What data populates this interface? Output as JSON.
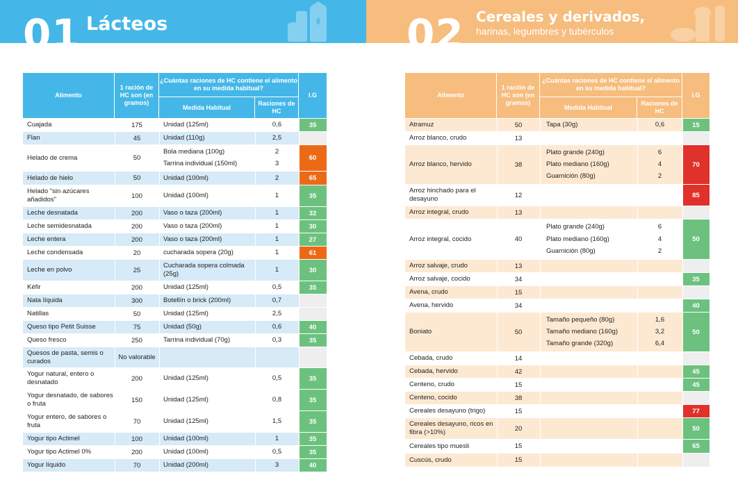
{
  "colors": {
    "green": "#6cc17f",
    "orange": "#ec6a16",
    "red": "#e0312b",
    "blue": "#44b7e8",
    "peach": "#f6bd7e",
    "row_blue": "#d6eaf7",
    "row_peach": "#fde9d2",
    "empty_ig": "#eeeeee"
  },
  "section1": {
    "number": "01",
    "title": "Lácteos",
    "icon": "dairy-products-icon",
    "headers": {
      "food": "Alimento",
      "grams": "1 ración de HC son (en gramos)",
      "question": "¿Cuántas raciones de HC contiene el alimento en su medida habitual?",
      "measure": "Medida Habitual",
      "portions": "Raciones de HC",
      "ig": "I.G"
    },
    "rows": [
      {
        "name": "Cuajada",
        "grams": "175",
        "measures": [
          "Unidad (125ml)"
        ],
        "portions": [
          "0,6"
        ],
        "ig": "35",
        "color": "green",
        "h": 19,
        "tint": false
      },
      {
        "name": "Flan",
        "grams": "45",
        "measures": [
          "Unidad (110g)"
        ],
        "portions": [
          "2,5"
        ],
        "ig": "",
        "color": "empty",
        "h": 19,
        "tint": true
      },
      {
        "name": "Helado de crema",
        "grams": "50",
        "measures": [
          "Bola mediana (100g)",
          "Tarrina individual (150ml)"
        ],
        "portions": [
          "2",
          "3"
        ],
        "ig": "60",
        "color": "orange",
        "h": 38,
        "tint": false
      },
      {
        "name": "Helado de hielo",
        "grams": "50",
        "measures": [
          "Unidad (100ml)"
        ],
        "portions": [
          "2"
        ],
        "ig": "65",
        "color": "orange",
        "h": 20,
        "tint": true
      },
      {
        "name": "Helado \"sin azúcares añadidos\"",
        "grams": "100",
        "measures": [
          "Unidad (100ml)"
        ],
        "portions": [
          "1"
        ],
        "ig": "35",
        "color": "green",
        "h": 31,
        "tint": false
      },
      {
        "name": "Leche desnatada",
        "grams": "200",
        "measures": [
          "Vaso o taza (200ml)"
        ],
        "portions": [
          "1"
        ],
        "ig": "32",
        "color": "green",
        "h": 19,
        "tint": true
      },
      {
        "name": "Leche semidesnatada",
        "grams": "200",
        "measures": [
          "Vaso o taza (200ml)"
        ],
        "portions": [
          "1"
        ],
        "ig": "30",
        "color": "green",
        "h": 19,
        "tint": false
      },
      {
        "name": "Leche entera",
        "grams": "200",
        "measures": [
          "Vaso o taza (200ml)"
        ],
        "portions": [
          "1"
        ],
        "ig": "27",
        "color": "green",
        "h": 19,
        "tint": true
      },
      {
        "name": "Leche condensada",
        "grams": "20",
        "measures": [
          "cucharada sopera (20g)"
        ],
        "portions": [
          "1"
        ],
        "ig": "61",
        "color": "orange",
        "h": 19,
        "tint": false
      },
      {
        "name": "Leche en polvo",
        "grams": "25",
        "measures": [
          "Cucharada sopera colmada (25g)"
        ],
        "portions": [
          "1"
        ],
        "ig": "30",
        "color": "green",
        "h": 31,
        "tint": true
      },
      {
        "name": "Kéfir",
        "grams": "200",
        "measures": [
          "Unidad (125ml)"
        ],
        "portions": [
          "0,5"
        ],
        "ig": "35",
        "color": "green",
        "h": 19,
        "tint": false
      },
      {
        "name": "Nata líquida",
        "grams": "300",
        "measures": [
          "Botellín o brick (200ml)"
        ],
        "portions": [
          "0,7"
        ],
        "ig": "",
        "color": "empty",
        "h": 19,
        "tint": true
      },
      {
        "name": "Natillas",
        "grams": "50",
        "measures": [
          "Unidad (125ml)"
        ],
        "portions": [
          "2,5"
        ],
        "ig": "",
        "color": "empty",
        "h": 19,
        "tint": false
      },
      {
        "name": "Queso tipo Petit Suisse",
        "grams": "75",
        "measures": [
          "Unidad (50g)"
        ],
        "portions": [
          "0,6"
        ],
        "ig": "40",
        "color": "green",
        "h": 19,
        "tint": true
      },
      {
        "name": "Queso fresco",
        "grams": "250",
        "measures": [
          "Tarrina individual (70g)"
        ],
        "portions": [
          "0,3"
        ],
        "ig": "35",
        "color": "green",
        "h": 19,
        "tint": false
      },
      {
        "name": "Quesos de pasta, semis o curados",
        "grams": "No valorable",
        "measures": [
          ""
        ],
        "portions": [
          ""
        ],
        "ig": "",
        "color": "empty",
        "h": 30,
        "tint": true
      },
      {
        "name": "Yogur natural, entero o desnatado",
        "grams": "200",
        "measures": [
          "Unidad (125ml)"
        ],
        "portions": [
          "0,5"
        ],
        "ig": "35",
        "color": "green",
        "h": 31,
        "tint": false
      },
      {
        "name": "Yogur desnatado, de sabores o fruta",
        "grams": "150",
        "measures": [
          "Unidad (125ml)"
        ],
        "portions": [
          "0,8"
        ],
        "ig": "35",
        "color": "green",
        "h": 31,
        "tint": false
      },
      {
        "name": "Yogur entero, de sabores o fruta",
        "grams": "70",
        "measures": [
          "Unidad (125ml)"
        ],
        "portions": [
          "1,5"
        ],
        "ig": "35",
        "color": "green",
        "h": 31,
        "tint": false
      },
      {
        "name": "Yogur tipo Actimel",
        "grams": "100",
        "measures": [
          "Unidad (100ml)"
        ],
        "portions": [
          "1"
        ],
        "ig": "35",
        "color": "green",
        "h": 19,
        "tint": true
      },
      {
        "name": "Yogur tipo Actimel 0%",
        "grams": "200",
        "measures": [
          "Unidad (100ml)"
        ],
        "portions": [
          "0,5"
        ],
        "ig": "35",
        "color": "green",
        "h": 19,
        "tint": false
      },
      {
        "name": "Yogur líquido",
        "grams": "70",
        "measures": [
          "Unidad (200ml)"
        ],
        "portions": [
          "3"
        ],
        "ig": "40",
        "color": "green",
        "h": 19,
        "tint": true
      }
    ]
  },
  "section2": {
    "number": "02",
    "title": "Cereales y derivados,",
    "subtitle": "harinas, legumbres y tubérculos",
    "icon": "bread-grain-icon",
    "headers": {
      "food": "Alimento",
      "grams": "1 ración de HC son (en gramos)",
      "question": "¿Cuántas raciones de HC contiene el alimento en su medida habitual?",
      "measure": "Medida Habitual",
      "portions": "Raciones de HC",
      "ig": "I.G"
    },
    "rows": [
      {
        "name": "Atramuz",
        "grams": "50",
        "measures": [
          "Tapa (30g)"
        ],
        "portions": [
          "0,6"
        ],
        "ig": "15",
        "color": "green",
        "h": 19,
        "tint": true
      },
      {
        "name": "Arroz blanco, crudo",
        "grams": "13",
        "measures": [
          ""
        ],
        "portions": [
          ""
        ],
        "ig": "",
        "color": "empty",
        "h": 19,
        "tint": false
      },
      {
        "name": "Arroz blanco, hervido",
        "grams": "38",
        "measures": [
          "Plato grande (240g)",
          "Plato mediano (160g)",
          "Guarnición (80g)"
        ],
        "portions": [
          "6",
          "4",
          "2"
        ],
        "ig": "70",
        "color": "red",
        "h": 57,
        "tint": true
      },
      {
        "name": "Arroz hinchado para el desayuno",
        "grams": "12",
        "measures": [
          ""
        ],
        "portions": [
          ""
        ],
        "ig": "85",
        "color": "red",
        "h": 31,
        "tint": false
      },
      {
        "name": "Arroz integral, crudo",
        "grams": "13",
        "measures": [
          ""
        ],
        "portions": [
          ""
        ],
        "ig": "",
        "color": "empty",
        "h": 19,
        "tint": true
      },
      {
        "name": "Arroz integral, cocido",
        "grams": "40",
        "measures": [
          "Plato grande (240g)",
          "Plato mediano (160g)",
          "Guarnición (80g)"
        ],
        "portions": [
          "6",
          "4",
          "2"
        ],
        "ig": "50",
        "color": "green",
        "h": 58,
        "tint": false
      },
      {
        "name": "Arroz salvaje, crudo",
        "grams": "13",
        "measures": [
          ""
        ],
        "portions": [
          ""
        ],
        "ig": "",
        "color": "empty",
        "h": 19,
        "tint": true
      },
      {
        "name": "Arroz salvaje, cocido",
        "grams": "34",
        "measures": [
          ""
        ],
        "portions": [
          ""
        ],
        "ig": "35",
        "color": "green",
        "h": 19,
        "tint": false
      },
      {
        "name": "Avena, crudo",
        "grams": "15",
        "measures": [
          ""
        ],
        "portions": [
          ""
        ],
        "ig": "",
        "color": "empty",
        "h": 19,
        "tint": true
      },
      {
        "name": "Avena, hervido",
        "grams": "34",
        "measures": [
          ""
        ],
        "portions": [
          ""
        ],
        "ig": "40",
        "color": "green",
        "h": 19,
        "tint": false
      },
      {
        "name": "Boniato",
        "grams": "50",
        "measures": [
          "Tamaño pequeño (80g)",
          "Tamaño mediano (160g)",
          "Tamaño grande (320g)"
        ],
        "portions": [
          "1,6",
          "3,2",
          "6,4"
        ],
        "ig": "50",
        "color": "green",
        "h": 57,
        "tint": true
      },
      {
        "name": "Cebada, crudo",
        "grams": "14",
        "measures": [
          ""
        ],
        "portions": [
          ""
        ],
        "ig": "",
        "color": "empty",
        "h": 19,
        "tint": false
      },
      {
        "name": "Cebada, hervido",
        "grams": "42",
        "measures": [
          ""
        ],
        "portions": [
          ""
        ],
        "ig": "45",
        "color": "green",
        "h": 19,
        "tint": true
      },
      {
        "name": "Centeno, crudo",
        "grams": "15",
        "measures": [
          ""
        ],
        "portions": [
          ""
        ],
        "ig": "45",
        "color": "green",
        "h": 19,
        "tint": false
      },
      {
        "name": "Centeno, cocido",
        "grams": "38",
        "measures": [
          ""
        ],
        "portions": [
          ""
        ],
        "ig": "",
        "color": "empty",
        "h": 19,
        "tint": true
      },
      {
        "name": "Cereales desayuno (trigo)",
        "grams": "15",
        "measures": [
          ""
        ],
        "portions": [
          ""
        ],
        "ig": "77",
        "color": "red",
        "h": 19,
        "tint": false
      },
      {
        "name": "Cereales desayuno, ricos en fibra (>10%)",
        "grams": "20",
        "measures": [
          ""
        ],
        "portions": [
          ""
        ],
        "ig": "50",
        "color": "green",
        "h": 31,
        "tint": true
      },
      {
        "name": "Cereales tipo muesli",
        "grams": "15",
        "measures": [
          ""
        ],
        "portions": [
          ""
        ],
        "ig": "65",
        "color": "green",
        "h": 20,
        "tint": false
      },
      {
        "name": "Cuscús, crudo",
        "grams": "15",
        "measures": [
          ""
        ],
        "portions": [
          ""
        ],
        "ig": "",
        "color": "empty",
        "h": 20,
        "tint": true
      }
    ]
  }
}
